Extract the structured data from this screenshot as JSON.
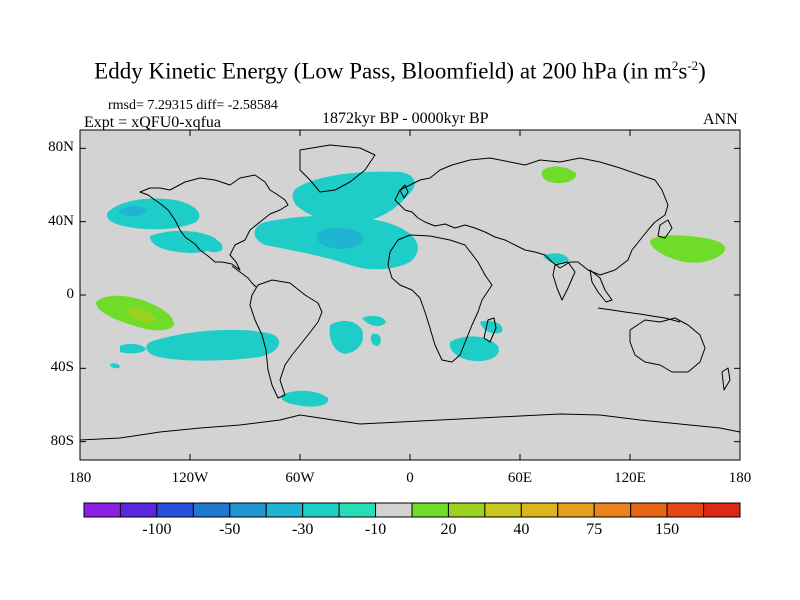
{
  "title_main": "Eddy Kinetic Energy (Low Pass, Bloomfield) at 200 hPa (in m",
  "title_sup1": "2",
  "title_mid": "s",
  "title_sup2": "-2",
  "title_end": ")",
  "stats": "rmsd= 7.29315 diff= -2.58584",
  "experiment": "Expt = xQFU0-xqfua",
  "period": "1872kyr BP - 0000kyr BP",
  "season": "ANN",
  "y_ticks": [
    {
      "label": "80N",
      "lat": 80
    },
    {
      "label": "40N",
      "lat": 40
    },
    {
      "label": "0",
      "lat": 0
    },
    {
      "label": "40S",
      "lat": -40
    },
    {
      "label": "80S",
      "lat": -80
    }
  ],
  "x_ticks": [
    {
      "label": "180",
      "lon": -180
    },
    {
      "label": "120W",
      "lon": -120
    },
    {
      "label": "60W",
      "lon": -60
    },
    {
      "label": "0",
      "lon": 0
    },
    {
      "label": "60E",
      "lon": 60
    },
    {
      "label": "120E",
      "lon": 120
    },
    {
      "label": "180",
      "lon": 180
    }
  ],
  "colorbar": {
    "colors": [
      "#8c1ee6",
      "#5a28dc",
      "#2850dc",
      "#1e78d2",
      "#1e96d2",
      "#1eb4d2",
      "#1ecdc8",
      "#28dcb4",
      "#d2d2d2",
      "#6edc28",
      "#9bd21e",
      "#c8c81e",
      "#dcb41e",
      "#e6a01e",
      "#eb821e",
      "#e66414",
      "#e64614",
      "#dc2814"
    ],
    "labels": [
      {
        "text": "-100",
        "after_box": 2
      },
      {
        "text": "-50",
        "after_box": 4
      },
      {
        "text": "-30",
        "after_box": 6
      },
      {
        "text": "-10",
        "after_box": 8
      },
      {
        "text": "20",
        "after_box": 10
      },
      {
        "text": "40",
        "after_box": 12
      },
      {
        "text": "75",
        "after_box": 14
      },
      {
        "text": "150",
        "after_box": 16
      }
    ]
  },
  "chart_data": {
    "type": "heatmap",
    "title": "Eddy Kinetic Energy (Low Pass, Bloomfield) at 200 hPa (in m2s-2)",
    "projection": "cylindrical equidistant",
    "lon_range": [
      -180,
      180
    ],
    "lat_range": [
      -90,
      90
    ],
    "background_value": "between -10 and 10",
    "anomaly_regions": [
      {
        "name": "North Pacific",
        "lon": -150,
        "lat": 47,
        "category": "-10 to -30"
      },
      {
        "name": "Western North America",
        "lon": -115,
        "lat": 45,
        "category": "-10 to -30"
      },
      {
        "name": "Subtropical eastern Pacific",
        "lon": -105,
        "lat": 30,
        "category": "-10 to -30"
      },
      {
        "name": "North Atlantic / Greenland",
        "lon": -40,
        "lat": 57,
        "category": "-10 to -30"
      },
      {
        "name": "Central North Atlantic",
        "lon": -40,
        "lat": 30,
        "category": "-10 to -30"
      },
      {
        "name": "South Pacific",
        "lon": -105,
        "lat": -27,
        "category": "-10 to -30"
      },
      {
        "name": "South Atlantic",
        "lon": -20,
        "lat": -17,
        "category": "-10 to -30"
      },
      {
        "name": "Southeast Atlantic",
        "lon": -5,
        "lat": -30,
        "category": "-10 to -30"
      },
      {
        "name": "Madagascar region",
        "lon": 45,
        "lat": -27,
        "category": "-10 to -30"
      },
      {
        "name": "Southern Ocean south of South America",
        "lon": -52,
        "lat": -55,
        "category": "-10 to -30"
      },
      {
        "name": "Arabian Sea",
        "lon": 60,
        "lat": 20,
        "category": "-10 to -30"
      },
      {
        "name": "Tropical eastern Pacific",
        "lon": -152,
        "lat": -5,
        "category": "10 to 20"
      },
      {
        "name": "Northwest Pacific",
        "lon": 160,
        "lat": 30,
        "category": "10 to 20"
      },
      {
        "name": "Siberian Arctic",
        "lon": 90,
        "lat": 70,
        "category": "10 to 20"
      }
    ]
  }
}
